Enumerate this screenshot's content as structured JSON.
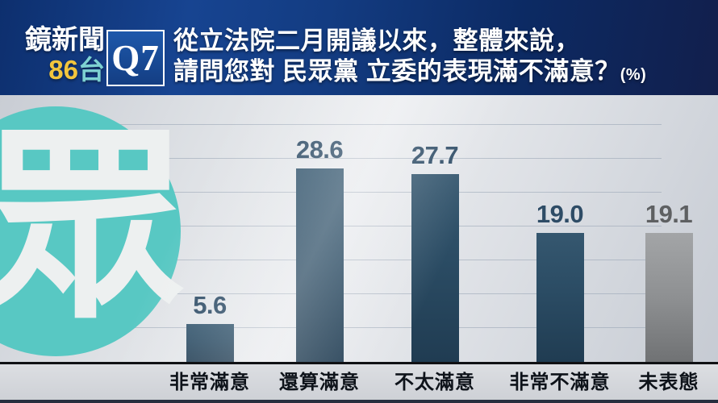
{
  "header": {
    "channel": {
      "name": "鏡新聞",
      "number": "86",
      "suffix": "台"
    },
    "question_tag": "Q7",
    "question_line1": "從立法院二月開議以來，整體來說，",
    "question_line2": "請問您對 民眾黨 立委的表現滿不滿意？",
    "unit": "(%)"
  },
  "party_badge": {
    "character": "眾"
  },
  "chart_data": {
    "type": "bar",
    "title": "從立法院二月開議以來，整體來說，請問您對民眾黨立委的表現滿不滿意？",
    "unit": "%",
    "categories": [
      "非常滿意",
      "還算滿意",
      "不太滿意",
      "非常不滿意",
      "未表態"
    ],
    "values": [
      5.6,
      28.6,
      27.7,
      19.0,
      19.1
    ],
    "value_labels": [
      "5.6",
      "28.6",
      "27.7",
      "19.0",
      "19.1"
    ],
    "bar_styles": [
      "navy",
      "navy",
      "navy",
      "navy",
      "gray"
    ],
    "ylim": [
      0,
      35
    ],
    "grid_step": 5,
    "grid": true,
    "legend": false,
    "xlabel": "",
    "ylabel": ""
  },
  "colors": {
    "header_navy": "#133c82",
    "accent_gold": "#f2c53d",
    "accent_teal": "#58c8c3",
    "bar_navy": "#2b4c64",
    "bar_gray": "#8e9092",
    "value_label_navy": "#2e4c66",
    "value_label_gray": "#5e6062"
  }
}
